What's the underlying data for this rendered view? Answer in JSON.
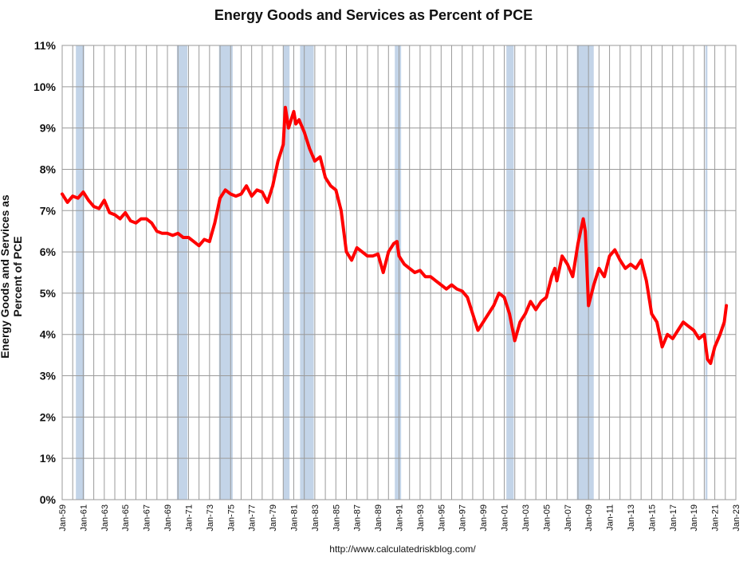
{
  "chart_data": {
    "type": "line",
    "title": "Energy Goods and Services as Percent of PCE",
    "ylabel": "Energy Goods and Services as Percent of PCE",
    "xlabel": "",
    "source": "http://www.calculatedriskblog.com/",
    "ylim": [
      0,
      11
    ],
    "xlim": [
      1959.0,
      2023.0
    ],
    "y_ticks": [
      "0%",
      "1%",
      "2%",
      "3%",
      "4%",
      "5%",
      "6%",
      "7%",
      "8%",
      "9%",
      "10%",
      "11%"
    ],
    "x_ticks": [
      "Jan-59",
      "Jan-61",
      "Jan-63",
      "Jan-65",
      "Jan-67",
      "Jan-69",
      "Jan-71",
      "Jan-73",
      "Jan-75",
      "Jan-77",
      "Jan-79",
      "Jan-81",
      "Jan-83",
      "Jan-85",
      "Jan-87",
      "Jan-89",
      "Jan-91",
      "Jan-93",
      "Jan-95",
      "Jan-97",
      "Jan-99",
      "Jan-01",
      "Jan-03",
      "Jan-05",
      "Jan-07",
      "Jan-09",
      "Jan-11",
      "Jan-13",
      "Jan-15",
      "Jan-17",
      "Jan-19",
      "Jan-21",
      "Jan-23"
    ],
    "grid": true,
    "recessions": [
      [
        1960.3,
        1961.1
      ],
      [
        1969.9,
        1970.9
      ],
      [
        1973.9,
        1975.2
      ],
      [
        1980.0,
        1980.6
      ],
      [
        1981.6,
        1982.9
      ],
      [
        1990.6,
        1991.2
      ],
      [
        2001.2,
        2001.9
      ],
      [
        2007.9,
        2009.5
      ],
      [
        2020.1,
        2020.3
      ]
    ],
    "series": [
      {
        "color": "#ff0000",
        "x": [
          1959.0,
          1959.5,
          1960.0,
          1960.5,
          1961.0,
          1961.5,
          1962.0,
          1962.5,
          1963.0,
          1963.5,
          1964.0,
          1964.5,
          1965.0,
          1965.5,
          1966.0,
          1966.5,
          1967.0,
          1967.5,
          1968.0,
          1968.5,
          1969.0,
          1969.5,
          1970.0,
          1970.5,
          1971.0,
          1971.5,
          1972.0,
          1972.5,
          1973.0,
          1973.5,
          1974.0,
          1974.5,
          1975.0,
          1975.5,
          1976.0,
          1976.5,
          1977.0,
          1977.5,
          1978.0,
          1978.5,
          1979.0,
          1979.5,
          1980.0,
          1980.2,
          1980.5,
          1981.0,
          1981.2,
          1981.5,
          1982.0,
          1982.5,
          1983.0,
          1983.5,
          1984.0,
          1984.5,
          1985.0,
          1985.5,
          1986.0,
          1986.5,
          1987.0,
          1987.5,
          1988.0,
          1988.5,
          1989.0,
          1989.5,
          1990.0,
          1990.5,
          1990.8,
          1991.0,
          1991.5,
          1992.0,
          1992.5,
          1993.0,
          1993.5,
          1994.0,
          1994.5,
          1995.0,
          1995.5,
          1996.0,
          1996.5,
          1997.0,
          1997.5,
          1998.0,
          1998.5,
          1999.0,
          1999.5,
          2000.0,
          2000.5,
          2001.0,
          2001.5,
          2002.0,
          2002.5,
          2003.0,
          2003.5,
          2004.0,
          2004.5,
          2005.0,
          2005.5,
          2005.8,
          2006.0,
          2006.5,
          2007.0,
          2007.5,
          2008.0,
          2008.5,
          2008.7,
          2009.0,
          2009.5,
          2010.0,
          2010.5,
          2011.0,
          2011.5,
          2012.0,
          2012.5,
          2013.0,
          2013.5,
          2014.0,
          2014.5,
          2015.0,
          2015.5,
          2016.0,
          2016.5,
          2017.0,
          2017.5,
          2018.0,
          2018.5,
          2019.0,
          2019.5,
          2020.0,
          2020.3,
          2020.6,
          2021.0,
          2021.5,
          2021.9,
          2022.1
        ],
        "values": [
          7.4,
          7.2,
          7.35,
          7.3,
          7.45,
          7.25,
          7.1,
          7.05,
          7.25,
          6.95,
          6.9,
          6.8,
          6.95,
          6.75,
          6.7,
          6.8,
          6.8,
          6.7,
          6.5,
          6.45,
          6.45,
          6.4,
          6.45,
          6.35,
          6.35,
          6.25,
          6.15,
          6.3,
          6.25,
          6.7,
          7.3,
          7.5,
          7.4,
          7.35,
          7.4,
          7.6,
          7.35,
          7.5,
          7.45,
          7.2,
          7.6,
          8.2,
          8.6,
          9.5,
          9.0,
          9.4,
          9.1,
          9.2,
          8.9,
          8.5,
          8.2,
          8.3,
          7.8,
          7.6,
          7.5,
          7.0,
          6.0,
          5.8,
          6.1,
          6.0,
          5.9,
          5.9,
          5.95,
          5.5,
          6.0,
          6.2,
          6.25,
          5.9,
          5.7,
          5.6,
          5.5,
          5.55,
          5.4,
          5.4,
          5.3,
          5.2,
          5.1,
          5.2,
          5.1,
          5.05,
          4.9,
          4.5,
          4.1,
          4.3,
          4.5,
          4.7,
          5.0,
          4.9,
          4.5,
          3.85,
          4.3,
          4.5,
          4.8,
          4.6,
          4.8,
          4.9,
          5.4,
          5.6,
          5.3,
          5.9,
          5.7,
          5.4,
          6.2,
          6.8,
          6.5,
          4.7,
          5.2,
          5.6,
          5.4,
          5.9,
          6.05,
          5.8,
          5.6,
          5.7,
          5.6,
          5.8,
          5.3,
          4.5,
          4.3,
          3.7,
          4.0,
          3.9,
          4.1,
          4.3,
          4.2,
          4.1,
          3.9,
          4.0,
          3.4,
          3.3,
          3.7,
          4.0,
          4.3,
          4.7
        ]
      }
    ]
  }
}
